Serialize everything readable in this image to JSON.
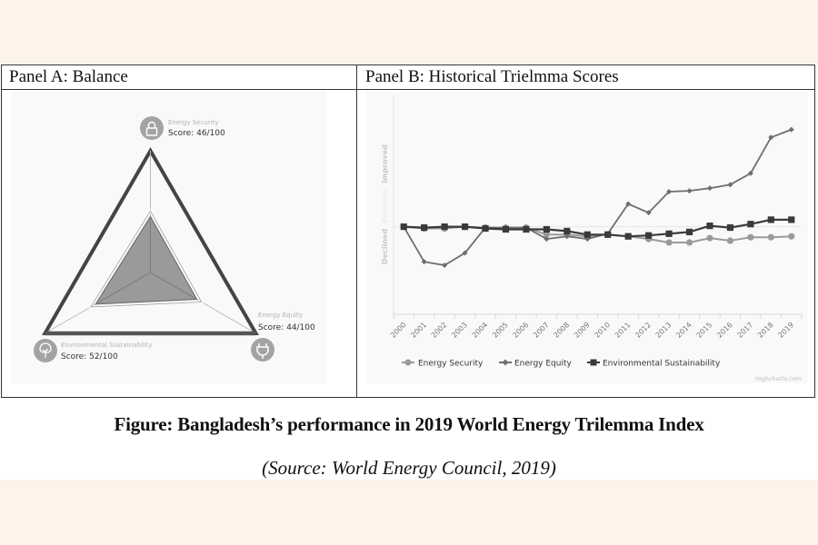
{
  "panels": {
    "a_title": "Panel A: Balance",
    "b_title": "Panel B: Historical Trielmma Scores"
  },
  "caption": {
    "title": "Figure: Bangladesh’s performance in 2019 World Energy Trilemma Index",
    "source": "(Source: World Energy Council, 2019)"
  },
  "colors": {
    "page_bg": "#fdf3e8",
    "security": "#9a9a9a",
    "equity": "#6e6e6e",
    "sustainability": "#3a3a3a",
    "fill": "#8f8f8f"
  },
  "chart_data": [
    {
      "type": "radar",
      "title": "Panel A: Balance",
      "max": 100,
      "axes": [
        {
          "name": "Energy Security",
          "score_label": "Score: 46/100",
          "value": 46,
          "icon": "lock-icon"
        },
        {
          "name": "Energy Equity",
          "score_label": "Score: 44/100",
          "value": 44,
          "icon": "plug-icon"
        },
        {
          "name": "Environmental Sustainability",
          "score_label": "Score: 52/100",
          "value": 52,
          "icon": "tree-icon"
        }
      ]
    },
    {
      "type": "line",
      "title": "Panel B: Historical Trielmma Scores",
      "ylabel_parts": [
        "Declined",
        "Baseline",
        "Improved"
      ],
      "ylim": [
        -10,
        15
      ],
      "baseline": 0,
      "categories": [
        "2000",
        "2001",
        "2002",
        "2003",
        "2004",
        "2005",
        "2006",
        "2007",
        "2008",
        "2009",
        "2010",
        "2011",
        "2012",
        "2013",
        "2014",
        "2015",
        "2016",
        "2017",
        "2018",
        "2019"
      ],
      "series": [
        {
          "name": "Energy Security",
          "marker": "circle",
          "values": [
            0,
            -0.2,
            -0.2,
            0,
            -0.1,
            -0.1,
            -0.1,
            -0.9,
            -0.9,
            -1.1,
            -0.9,
            -1.1,
            -1.4,
            -1.8,
            -1.8,
            -1.3,
            -1.6,
            -1.2,
            -1.2,
            -1.1
          ]
        },
        {
          "name": "Energy Equity",
          "marker": "diamond",
          "values": [
            0,
            -4.0,
            -4.4,
            -3.0,
            -0.1,
            -0.1,
            -0.1,
            -1.4,
            -1.1,
            -1.4,
            -0.8,
            2.6,
            1.6,
            4.0,
            4.1,
            4.4,
            4.8,
            6.1,
            10.2,
            11.1
          ]
        },
        {
          "name": "Environmental Sustainability",
          "marker": "square",
          "values": [
            0,
            -0.1,
            0,
            0,
            -0.2,
            -0.3,
            -0.3,
            -0.3,
            -0.5,
            -0.9,
            -0.9,
            -1.1,
            -1.0,
            -0.8,
            -0.6,
            0.1,
            -0.1,
            0.3,
            0.8,
            0.8
          ]
        }
      ],
      "legend": [
        "Energy Security",
        "Energy Equity",
        "Environmental Sustainability"
      ],
      "legend_position": "bottom",
      "credit": "Highcharts.com"
    }
  ]
}
